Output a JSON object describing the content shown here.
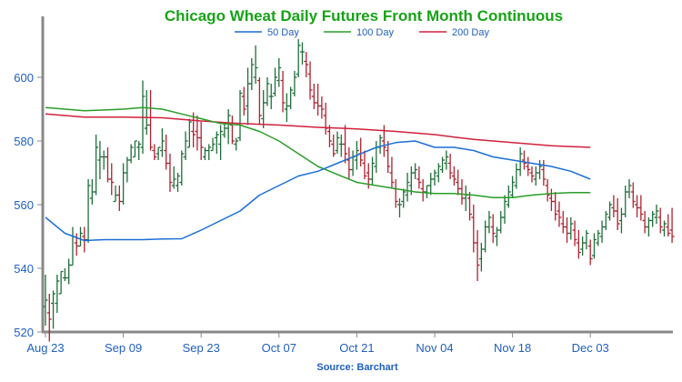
{
  "chart_data": {
    "type": "ohlc_line",
    "title": "Chicago Wheat Daily Futures Front Month Continuous",
    "source": "Source: Barchart",
    "ylim": [
      520,
      620
    ],
    "y_ticks": [
      520,
      540,
      560,
      580,
      600
    ],
    "x_tick_labels": [
      "Aug 23",
      "Sep 09",
      "Sep 23",
      "Oct 07",
      "Oct 21",
      "Nov 04",
      "Nov 18",
      "Dec 03"
    ],
    "x_tick_bar_index": [
      0,
      20,
      40,
      60,
      80,
      100,
      120,
      140
    ],
    "bar_count": 162,
    "legend": [
      {
        "name": "50 Day",
        "color": "#1a6fd6"
      },
      {
        "name": "100 Day",
        "color": "#2a9d2a"
      },
      {
        "name": "200 Day",
        "color": "#d0213c"
      }
    ],
    "up_color": "#1e6e3a",
    "down_color": "#b0202f",
    "title_color": "#17a317",
    "tick_color": "#1f5fbf",
    "ma50": [
      [
        0,
        556
      ],
      [
        5,
        551
      ],
      [
        10,
        548.7
      ],
      [
        15,
        549
      ],
      [
        20,
        549
      ],
      [
        25,
        549
      ],
      [
        30,
        549.2
      ],
      [
        35,
        549.3
      ],
      [
        40,
        552
      ],
      [
        45,
        555
      ],
      [
        50,
        558
      ],
      [
        55,
        563
      ],
      [
        60,
        566
      ],
      [
        65,
        569
      ],
      [
        70,
        570.5
      ],
      [
        75,
        573
      ],
      [
        80,
        575.5
      ],
      [
        85,
        578
      ],
      [
        90,
        579.5
      ],
      [
        95,
        580
      ],
      [
        100,
        578
      ],
      [
        105,
        578
      ],
      [
        110,
        577
      ],
      [
        115,
        575
      ],
      [
        120,
        574
      ],
      [
        125,
        573
      ],
      [
        130,
        572
      ],
      [
        135,
        570.5
      ],
      [
        140,
        568
      ]
    ],
    "ma100": [
      [
        0,
        590.5
      ],
      [
        10,
        589.5
      ],
      [
        20,
        590
      ],
      [
        25,
        590.5
      ],
      [
        30,
        590
      ],
      [
        35,
        588.5
      ],
      [
        40,
        587
      ],
      [
        45,
        585.5
      ],
      [
        50,
        585
      ],
      [
        55,
        583
      ],
      [
        60,
        580
      ],
      [
        65,
        576
      ],
      [
        70,
        572
      ],
      [
        75,
        569.5
      ],
      [
        80,
        567
      ],
      [
        85,
        566
      ],
      [
        90,
        565
      ],
      [
        95,
        564
      ],
      [
        100,
        563.5
      ],
      [
        105,
        563.5
      ],
      [
        110,
        563
      ],
      [
        115,
        562.2
      ],
      [
        120,
        562.2
      ],
      [
        125,
        563
      ],
      [
        130,
        563.5
      ],
      [
        135,
        563.8
      ],
      [
        140,
        563.8
      ]
    ],
    "ma200": [
      [
        0,
        588.5
      ],
      [
        10,
        587.5
      ],
      [
        20,
        587.5
      ],
      [
        30,
        587.3
      ],
      [
        40,
        586.3
      ],
      [
        50,
        585.5
      ],
      [
        60,
        585
      ],
      [
        70,
        584.3
      ],
      [
        80,
        583.8
      ],
      [
        90,
        583
      ],
      [
        100,
        582
      ],
      [
        110,
        580.5
      ],
      [
        120,
        579.5
      ],
      [
        130,
        578.5
      ],
      [
        140,
        578
      ]
    ],
    "ohlc": [
      [
        0,
        538,
        528,
        522,
        530
      ],
      [
        1,
        532,
        526,
        517,
        524
      ],
      [
        2,
        533,
        529,
        521,
        532
      ],
      [
        3,
        538,
        529,
        526,
        536
      ],
      [
        4,
        539,
        532,
        532,
        539
      ],
      [
        5,
        540,
        537,
        536,
        537
      ],
      [
        6,
        543,
        537,
        535,
        541
      ],
      [
        7,
        553,
        541,
        541,
        550
      ],
      [
        8,
        551,
        548,
        544,
        547
      ],
      [
        9,
        553,
        547,
        547,
        551
      ],
      [
        10,
        553,
        550,
        545,
        549
      ],
      [
        11,
        568,
        549,
        548,
        566
      ],
      [
        12,
        568,
        562,
        560,
        564
      ],
      [
        13,
        582,
        564,
        563,
        578
      ],
      [
        14,
        580,
        574,
        568,
        575
      ],
      [
        15,
        577,
        575,
        571,
        575
      ],
      [
        16,
        578,
        575,
        567,
        568
      ],
      [
        17,
        573,
        568,
        563,
        567
      ],
      [
        18,
        566,
        561,
        561,
        563
      ],
      [
        19,
        566,
        563,
        558,
        561
      ],
      [
        20,
        573,
        561,
        560,
        570
      ],
      [
        21,
        575,
        570,
        567,
        574
      ],
      [
        22,
        579,
        574,
        573,
        578
      ],
      [
        23,
        580,
        575,
        575,
        580
      ],
      [
        24,
        580,
        578,
        574,
        579
      ],
      [
        25,
        599,
        578,
        576,
        594
      ],
      [
        26,
        596,
        584,
        582,
        585
      ],
      [
        27,
        596,
        585,
        577,
        578
      ],
      [
        28,
        579,
        577,
        574,
        575
      ],
      [
        29,
        578,
        576,
        574,
        578
      ],
      [
        30,
        584,
        577,
        575,
        580
      ],
      [
        31,
        582,
        577,
        571,
        573
      ],
      [
        32,
        576,
        573,
        564,
        567
      ],
      [
        33,
        572,
        566,
        565,
        568
      ],
      [
        34,
        570,
        566,
        564,
        569
      ],
      [
        35,
        577,
        567,
        566,
        576
      ],
      [
        36,
        583,
        575,
        574,
        580
      ],
      [
        37,
        587,
        578,
        578,
        586
      ],
      [
        38,
        589,
        583,
        578,
        582
      ],
      [
        39,
        588,
        583,
        577,
        581
      ],
      [
        40,
        586,
        581,
        574,
        578
      ],
      [
        41,
        578,
        575,
        574,
        577
      ],
      [
        42,
        579,
        577,
        574,
        578
      ],
      [
        43,
        581,
        577,
        577,
        579
      ],
      [
        44,
        583,
        581,
        576,
        582
      ],
      [
        45,
        585,
        579,
        574,
        583
      ],
      [
        46,
        586,
        582,
        581,
        584
      ],
      [
        47,
        590,
        584,
        579,
        588
      ],
      [
        48,
        588,
        585,
        579,
        580
      ],
      [
        49,
        581,
        579,
        577,
        580
      ],
      [
        50,
        596,
        581,
        580,
        595
      ],
      [
        51,
        597,
        594,
        588,
        590
      ],
      [
        52,
        603,
        591,
        585,
        598
      ],
      [
        53,
        606,
        598,
        596,
        604
      ],
      [
        54,
        610,
        600,
        598,
        603
      ],
      [
        55,
        600,
        599,
        585,
        588
      ],
      [
        56,
        596,
        587,
        584,
        592
      ],
      [
        57,
        600,
        592,
        591,
        598
      ],
      [
        58,
        598,
        594,
        590,
        594
      ],
      [
        59,
        603,
        595,
        594,
        600
      ],
      [
        60,
        606,
        599,
        597,
        603
      ],
      [
        61,
        602,
        599,
        589,
        592
      ],
      [
        62,
        595,
        590,
        586,
        591
      ],
      [
        63,
        597,
        591,
        590,
        596
      ],
      [
        64,
        602,
        595,
        594,
        600
      ],
      [
        65,
        612,
        601,
        600,
        610
      ],
      [
        66,
        611,
        608,
        604,
        608
      ],
      [
        67,
        608,
        605,
        600,
        604
      ],
      [
        68,
        605,
        601,
        593,
        596
      ],
      [
        69,
        598,
        594,
        590,
        592
      ],
      [
        70,
        598,
        592,
        588,
        591
      ],
      [
        71,
        594,
        591,
        587,
        590
      ],
      [
        72,
        592,
        588,
        582,
        584
      ],
      [
        73,
        585,
        583,
        578,
        580
      ],
      [
        74,
        582,
        579,
        575,
        576
      ],
      [
        75,
        583,
        577,
        576,
        581
      ],
      [
        76,
        582,
        579,
        575,
        579
      ],
      [
        77,
        585,
        579,
        573,
        576
      ],
      [
        78,
        578,
        574,
        568,
        571
      ],
      [
        79,
        577,
        571,
        569,
        575
      ],
      [
        80,
        580,
        574,
        571,
        577
      ],
      [
        81,
        581,
        576,
        572,
        574
      ],
      [
        82,
        577,
        573,
        568,
        569
      ],
      [
        83,
        573,
        570,
        565,
        568
      ],
      [
        84,
        575,
        568,
        566,
        573
      ],
      [
        85,
        580,
        572,
        570,
        578
      ],
      [
        86,
        582,
        578,
        576,
        581
      ],
      [
        87,
        585,
        580,
        575,
        578
      ],
      [
        88,
        580,
        577,
        570,
        572
      ],
      [
        89,
        575,
        570,
        565,
        567
      ],
      [
        90,
        568,
        565,
        559,
        561
      ],
      [
        91,
        562,
        560,
        556,
        560
      ],
      [
        92,
        565,
        561,
        559,
        564
      ],
      [
        93,
        570,
        563,
        561,
        567
      ],
      [
        94,
        572,
        566,
        563,
        570
      ],
      [
        95,
        573,
        570,
        568,
        571
      ],
      [
        96,
        572,
        568,
        565,
        567
      ],
      [
        97,
        568,
        565,
        561,
        564
      ],
      [
        98,
        566,
        564,
        562,
        566
      ],
      [
        99,
        570,
        566,
        563,
        568
      ],
      [
        100,
        571,
        568,
        566,
        570
      ],
      [
        101,
        573,
        569,
        567,
        572
      ],
      [
        102,
        575,
        571,
        570,
        574
      ],
      [
        103,
        577,
        573,
        571,
        575
      ],
      [
        104,
        576,
        573,
        568,
        570
      ],
      [
        105,
        572,
        569,
        566,
        568
      ],
      [
        106,
        571,
        567,
        563,
        565
      ],
      [
        107,
        568,
        565,
        560,
        562
      ],
      [
        108,
        566,
        562,
        558,
        563
      ],
      [
        109,
        564,
        562,
        555,
        557
      ],
      [
        110,
        560,
        556,
        545,
        548
      ],
      [
        111,
        552,
        548,
        536,
        541
      ],
      [
        112,
        548,
        543,
        539,
        546
      ],
      [
        113,
        555,
        546,
        545,
        553
      ],
      [
        114,
        558,
        553,
        551,
        556
      ],
      [
        115,
        557,
        553,
        548,
        551
      ],
      [
        116,
        553,
        550,
        547,
        552
      ],
      [
        117,
        558,
        552,
        551,
        556
      ],
      [
        118,
        563,
        556,
        554,
        561
      ],
      [
        119,
        566,
        560,
        559,
        564
      ],
      [
        120,
        569,
        563,
        562,
        567
      ],
      [
        121,
        573,
        566,
        565,
        571
      ],
      [
        122,
        578,
        571,
        569,
        576
      ],
      [
        123,
        577,
        574,
        571,
        573
      ],
      [
        124,
        575,
        572,
        569,
        571
      ],
      [
        125,
        572,
        570,
        567,
        569
      ],
      [
        126,
        572,
        568,
        566,
        570
      ],
      [
        127,
        574,
        570,
        568,
        572
      ],
      [
        128,
        574,
        571,
        566,
        568
      ],
      [
        129,
        568,
        566,
        561,
        563
      ],
      [
        130,
        565,
        562,
        558,
        561
      ],
      [
        131,
        564,
        561,
        555,
        557
      ],
      [
        132,
        561,
        558,
        553,
        556
      ],
      [
        133,
        558,
        554,
        551,
        553
      ],
      [
        134,
        556,
        553,
        548,
        551
      ],
      [
        135,
        556,
        551,
        549,
        554
      ],
      [
        136,
        555,
        552,
        547,
        549
      ],
      [
        137,
        552,
        548,
        543,
        545
      ],
      [
        138,
        550,
        546,
        544,
        548
      ],
      [
        139,
        552,
        548,
        546,
        551
      ],
      [
        140,
        549,
        547,
        541,
        543
      ],
      [
        141,
        551,
        544,
        543,
        549
      ],
      [
        142,
        552,
        548,
        547,
        551
      ],
      [
        143,
        555,
        550,
        548,
        553
      ],
      [
        144,
        558,
        553,
        552,
        557
      ],
      [
        145,
        561,
        556,
        555,
        560
      ],
      [
        146,
        563,
        559,
        556,
        558
      ],
      [
        147,
        562,
        558,
        552,
        554
      ],
      [
        148,
        559,
        555,
        551,
        557
      ],
      [
        149,
        566,
        557,
        556,
        564
      ],
      [
        150,
        568,
        564,
        562,
        566
      ],
      [
        151,
        567,
        564,
        559,
        561
      ],
      [
        152,
        563,
        560,
        556,
        559
      ],
      [
        153,
        563,
        559,
        555,
        557
      ],
      [
        154,
        558,
        555,
        551,
        553
      ],
      [
        155,
        556,
        553,
        550,
        555
      ],
      [
        156,
        558,
        555,
        553,
        557
      ],
      [
        157,
        560,
        556,
        554,
        558
      ],
      [
        158,
        559,
        556,
        551,
        553
      ],
      [
        159,
        555,
        552,
        550,
        554
      ],
      [
        160,
        557,
        553,
        550,
        551
      ],
      [
        161,
        559,
        552,
        548,
        550
      ]
    ]
  }
}
